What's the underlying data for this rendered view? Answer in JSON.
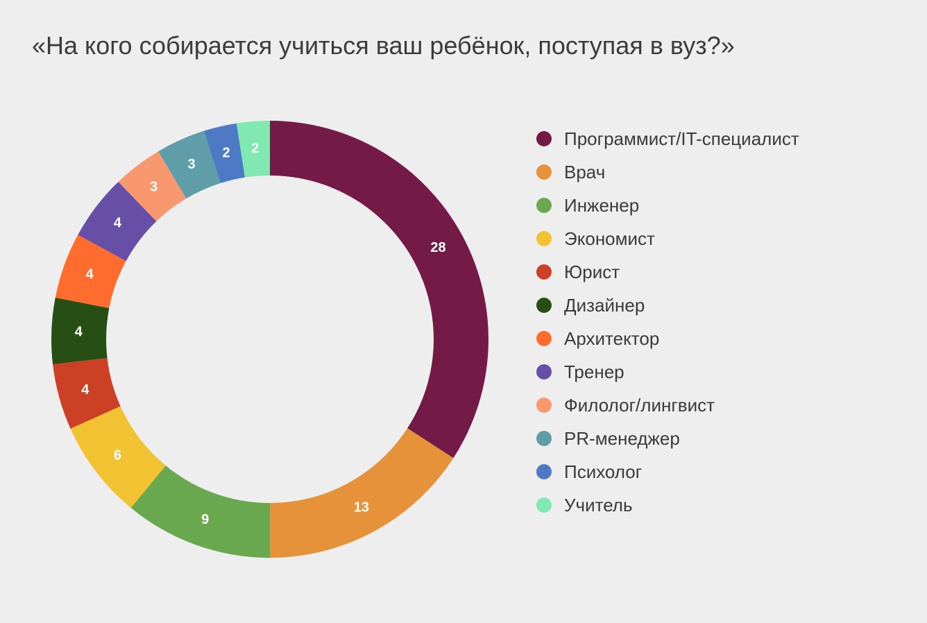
{
  "title": "«На кого собирается учиться ваш ребёнок, поступая в вуз?»",
  "chart_data": {
    "type": "pie",
    "donut": true,
    "title": "«На кого собирается учиться ваш ребёнок, поступая в вуз?»",
    "legend_position": "right",
    "start_angle": "top, clockwise",
    "slices": [
      {
        "label": "Программист/IT-специалист",
        "value": 28,
        "color": "#741a46"
      },
      {
        "label": "Врач",
        "value": 13,
        "color": "#e5923a"
      },
      {
        "label": "Инженер",
        "value": 9,
        "color": "#6aa84f"
      },
      {
        "label": "Экономист",
        "value": 6,
        "color": "#f1c232"
      },
      {
        "label": "Юрист",
        "value": 4,
        "color": "#cc4125"
      },
      {
        "label": "Дизайнер",
        "value": 4,
        "color": "#274e13"
      },
      {
        "label": "Архитектор",
        "value": 4,
        "color": "#ff6d2e"
      },
      {
        "label": "Тренер",
        "value": 4,
        "color": "#674ea7"
      },
      {
        "label": "Филолог/лингвист",
        "value": 3,
        "color": "#f8986f"
      },
      {
        "label": "PR-менеджер",
        "value": 3,
        "color": "#5f9ea9"
      },
      {
        "label": "Психолог",
        "value": 2,
        "color": "#4e79c4"
      },
      {
        "label": "Учитель",
        "value": 2,
        "color": "#80e8b0"
      }
    ]
  }
}
